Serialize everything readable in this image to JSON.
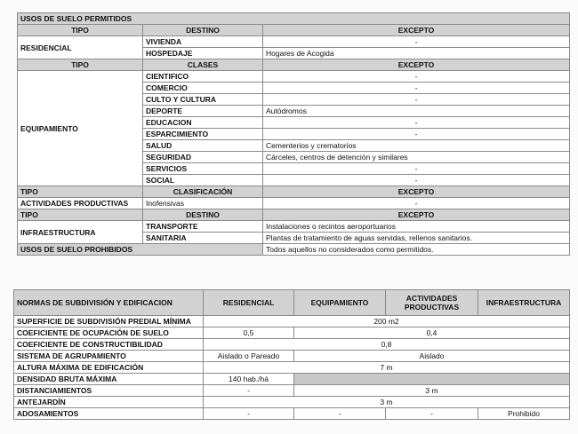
{
  "usos": {
    "title": "USOS DE SUELO PERMITIDOS",
    "sections": [
      {
        "headers": [
          "TIPO",
          "DESTINO",
          "EXCEPTO"
        ],
        "headers_align": "center",
        "tipo": "RESIDENCIAL",
        "rows": [
          [
            "VIVIENDA",
            "-"
          ],
          [
            "HOSPEDAJE",
            "Hogares de Acogida"
          ]
        ]
      },
      {
        "headers": [
          "TIPO",
          "CLASES",
          "EXCEPTO"
        ],
        "headers_align": "center",
        "tipo": "EQUIPAMIENTO",
        "rows": [
          [
            "CIENTIFICO",
            "-"
          ],
          [
            "COMERCIO",
            "-"
          ],
          [
            "CULTO Y CULTURA",
            "-"
          ],
          [
            "DEPORTE",
            "Autódromos"
          ],
          [
            "EDUCACION",
            "-"
          ],
          [
            "ESPARCIMIENTO",
            "-"
          ],
          [
            "SALUD",
            "Cementerios y crematorios"
          ],
          [
            "SEGURIDAD",
            "Cárceles, centros de detención y similares"
          ],
          [
            "SERVICIOS",
            "-"
          ],
          [
            "SOCIAL",
            "-"
          ]
        ]
      },
      {
        "headers": [
          "TIPO",
          "CLASIFICACIÓN",
          "EXCEPTO"
        ],
        "headers_align": "left",
        "tipo": "ACTIVIDADES PRODUCTIVAS",
        "rows": [
          [
            "Inofensivas",
            "-"
          ]
        ]
      },
      {
        "headers": [
          "TIPO",
          "DESTINO",
          "EXCEPTO"
        ],
        "headers_align": "left",
        "tipo": "INFRAESTRUCTURA",
        "rows": [
          [
            "TRANSPORTE",
            "Instalaciones o recintos aeroportuarios"
          ],
          [
            "SANITARIA",
            "Plantas de tratamiento de aguas servidas, rellenos sanitarios."
          ]
        ]
      }
    ],
    "prohibidos_label": "USOS DE SUELO PROHIBIDOS",
    "prohibidos_value": "Todos aquellos no considerados como permitidos."
  },
  "normas": {
    "headers": [
      "NORMAS DE SUBDIVISIÓN Y EDIFICACION",
      "RESIDENCIAL",
      "EQUIPAMIENTO",
      "ACTIVIDADES PRODUCTIVAS",
      "INFRAESTRUCTURA"
    ],
    "rows": [
      {
        "label": "SUPERFICIE DE SUBDIVISIÓN PREDIAL MÍNIMA",
        "cells": [
          {
            "v": "200 m2",
            "span": 4
          }
        ]
      },
      {
        "label": "COEFICIENTE DE OCUPACIÓN DE SUELO",
        "cells": [
          {
            "v": "0,5",
            "span": 1
          },
          {
            "v": "0,4",
            "span": 3
          }
        ]
      },
      {
        "label": "COEFICIENTE DE CONSTRUCTIBILIDAD",
        "cells": [
          {
            "v": "0,8",
            "span": 4
          }
        ]
      },
      {
        "label": "SISTEMA DE AGRUPAMIENTO",
        "cells": [
          {
            "v": "Aislado o Pareado",
            "span": 1
          },
          {
            "v": "Aislado",
            "span": 3
          }
        ]
      },
      {
        "label": "ALTURA MÁXIMA DE EDIFICACIÓN",
        "cells": [
          {
            "v": "7 m",
            "span": 4
          }
        ]
      },
      {
        "label": "DENSIDAD BRUTA MÁXIMA",
        "cells": [
          {
            "v": "140 hab./há",
            "span": 1
          },
          {
            "v": "",
            "span": 3,
            "shaded": true
          }
        ]
      },
      {
        "label": "DISTANCIAMIENTOS",
        "cells": [
          {
            "v": "-",
            "span": 1
          },
          {
            "v": "3 m",
            "span": 3
          }
        ]
      },
      {
        "label": "ANTEJARDÍN",
        "cells": [
          {
            "v": "3 m",
            "span": 4
          }
        ]
      },
      {
        "label": "ADOSAMIENTOS",
        "cells": [
          {
            "v": "-",
            "span": 1
          },
          {
            "v": "-",
            "span": 1
          },
          {
            "v": "-",
            "span": 1
          },
          {
            "v": "Prohibido",
            "span": 1
          }
        ]
      }
    ]
  }
}
